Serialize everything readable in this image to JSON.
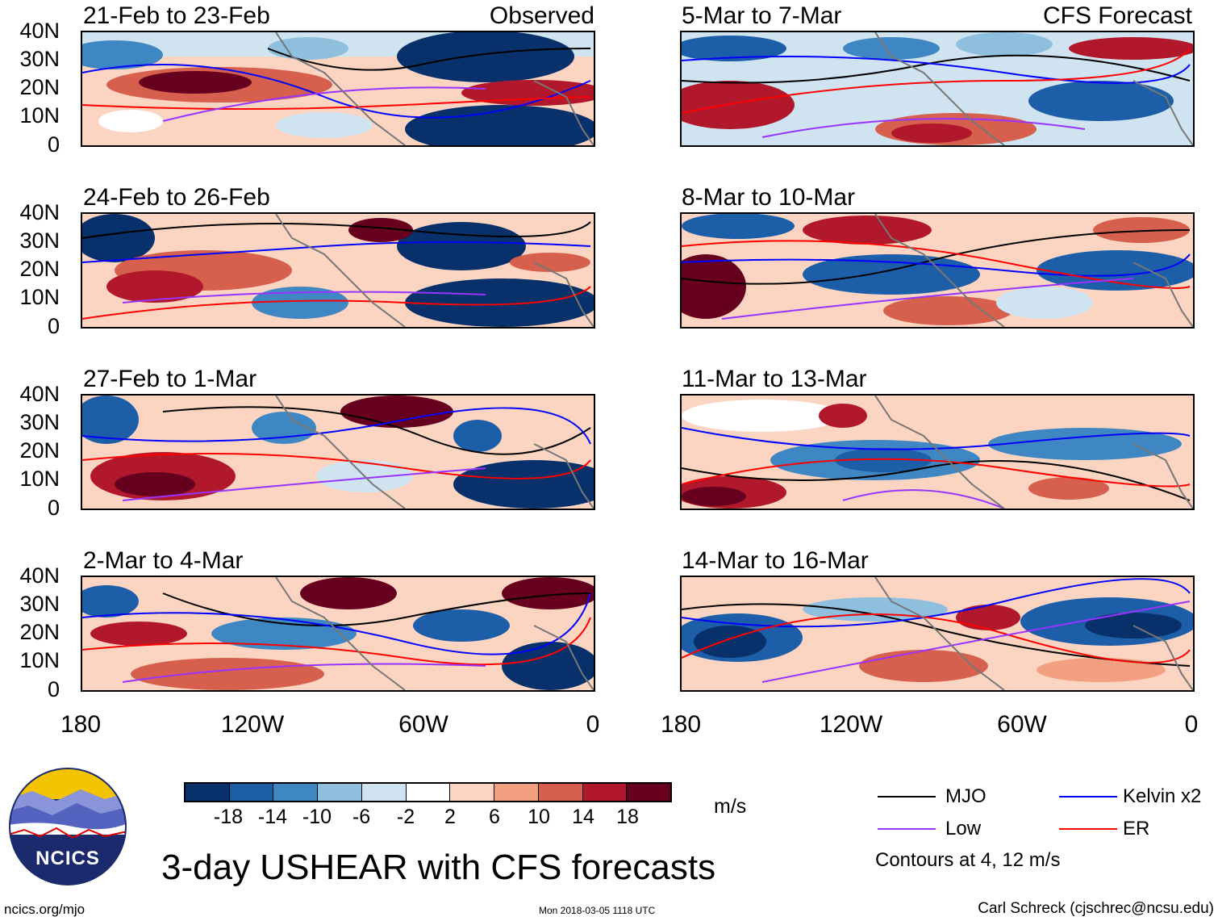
{
  "observed_label": "Observed",
  "forecast_label": "CFS Forecast",
  "panels_left": [
    {
      "title": "21-Feb to 23-Feb"
    },
    {
      "title": "24-Feb to 26-Feb"
    },
    {
      "title": "27-Feb to 1-Mar"
    },
    {
      "title": "2-Mar to 4-Mar"
    }
  ],
  "panels_right": [
    {
      "title": "5-Mar to 7-Mar"
    },
    {
      "title": "8-Mar to 10-Mar"
    },
    {
      "title": "11-Mar to 13-Mar"
    },
    {
      "title": "14-Mar to 16-Mar"
    }
  ],
  "y_ticks": [
    "40N",
    "30N",
    "20N",
    "10N",
    "0"
  ],
  "x_ticks": [
    "180",
    "120W",
    "60W",
    "0"
  ],
  "colorbar": {
    "ticks": [
      "-18",
      "-14",
      "-10",
      "-6",
      "-2",
      "2",
      "6",
      "10",
      "14",
      "18"
    ],
    "colors": [
      "#08306b",
      "#1c5ea8",
      "#3f87c2",
      "#8ebfdd",
      "#cfe3f0",
      "#ffffff",
      "#fbd5c2",
      "#f2a07f",
      "#d6604d",
      "#b2182b",
      "#67001f"
    ],
    "units": "m/s"
  },
  "legend": {
    "items": [
      {
        "label": "MJO",
        "color": "#000000"
      },
      {
        "label": "Kelvin x2",
        "color": "#0000ff"
      },
      {
        "label": "Low",
        "color": "#9933ff"
      },
      {
        "label": "ER",
        "color": "#ff0000"
      }
    ],
    "note": "Contours at 4, 12 m/s"
  },
  "logo_text": "NCICS",
  "main_title": "3-day USHEAR with CFS forecasts",
  "footer": {
    "left": "ncics.org/mjo",
    "center": "Mon 2018-03-05 1118 UTC",
    "right": "Carl Schreck (cjschrec@ncsu.edu)"
  }
}
